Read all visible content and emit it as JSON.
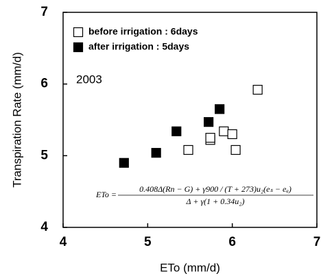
{
  "chart_data": {
    "type": "scatter",
    "xlabel": "ETo  (mm/d)",
    "ylabel": "Transpiration Rate  (mm/d)",
    "xlim": [
      4,
      7
    ],
    "xticks": [
      4,
      5,
      6,
      7
    ],
    "ylim": [
      4,
      7
    ],
    "yticks": [
      4,
      5,
      6,
      7
    ],
    "annotation": "2003",
    "formula": {
      "lhs": "ETo =",
      "numerator": "0.408Δ(Rn − G) + γ900 / (T + 273)u₂(eₛ − eₐ)",
      "denominator": "Δ + γ(1 + 0.34u₂)"
    },
    "series": [
      {
        "name": "before irrigation : 6days",
        "color": "#000000",
        "filled": false,
        "x": [
          5.48,
          5.74,
          5.74,
          5.9,
          6.0,
          6.04,
          6.3
        ],
        "values": [
          5.08,
          5.22,
          5.25,
          5.34,
          5.3,
          5.08,
          5.92
        ]
      },
      {
        "name": "after irrigation : 5days",
        "color": "#000000",
        "filled": true,
        "x": [
          4.72,
          5.1,
          5.34,
          5.72,
          5.85
        ],
        "values": [
          4.9,
          5.04,
          5.34,
          5.47,
          5.65
        ]
      }
    ]
  }
}
